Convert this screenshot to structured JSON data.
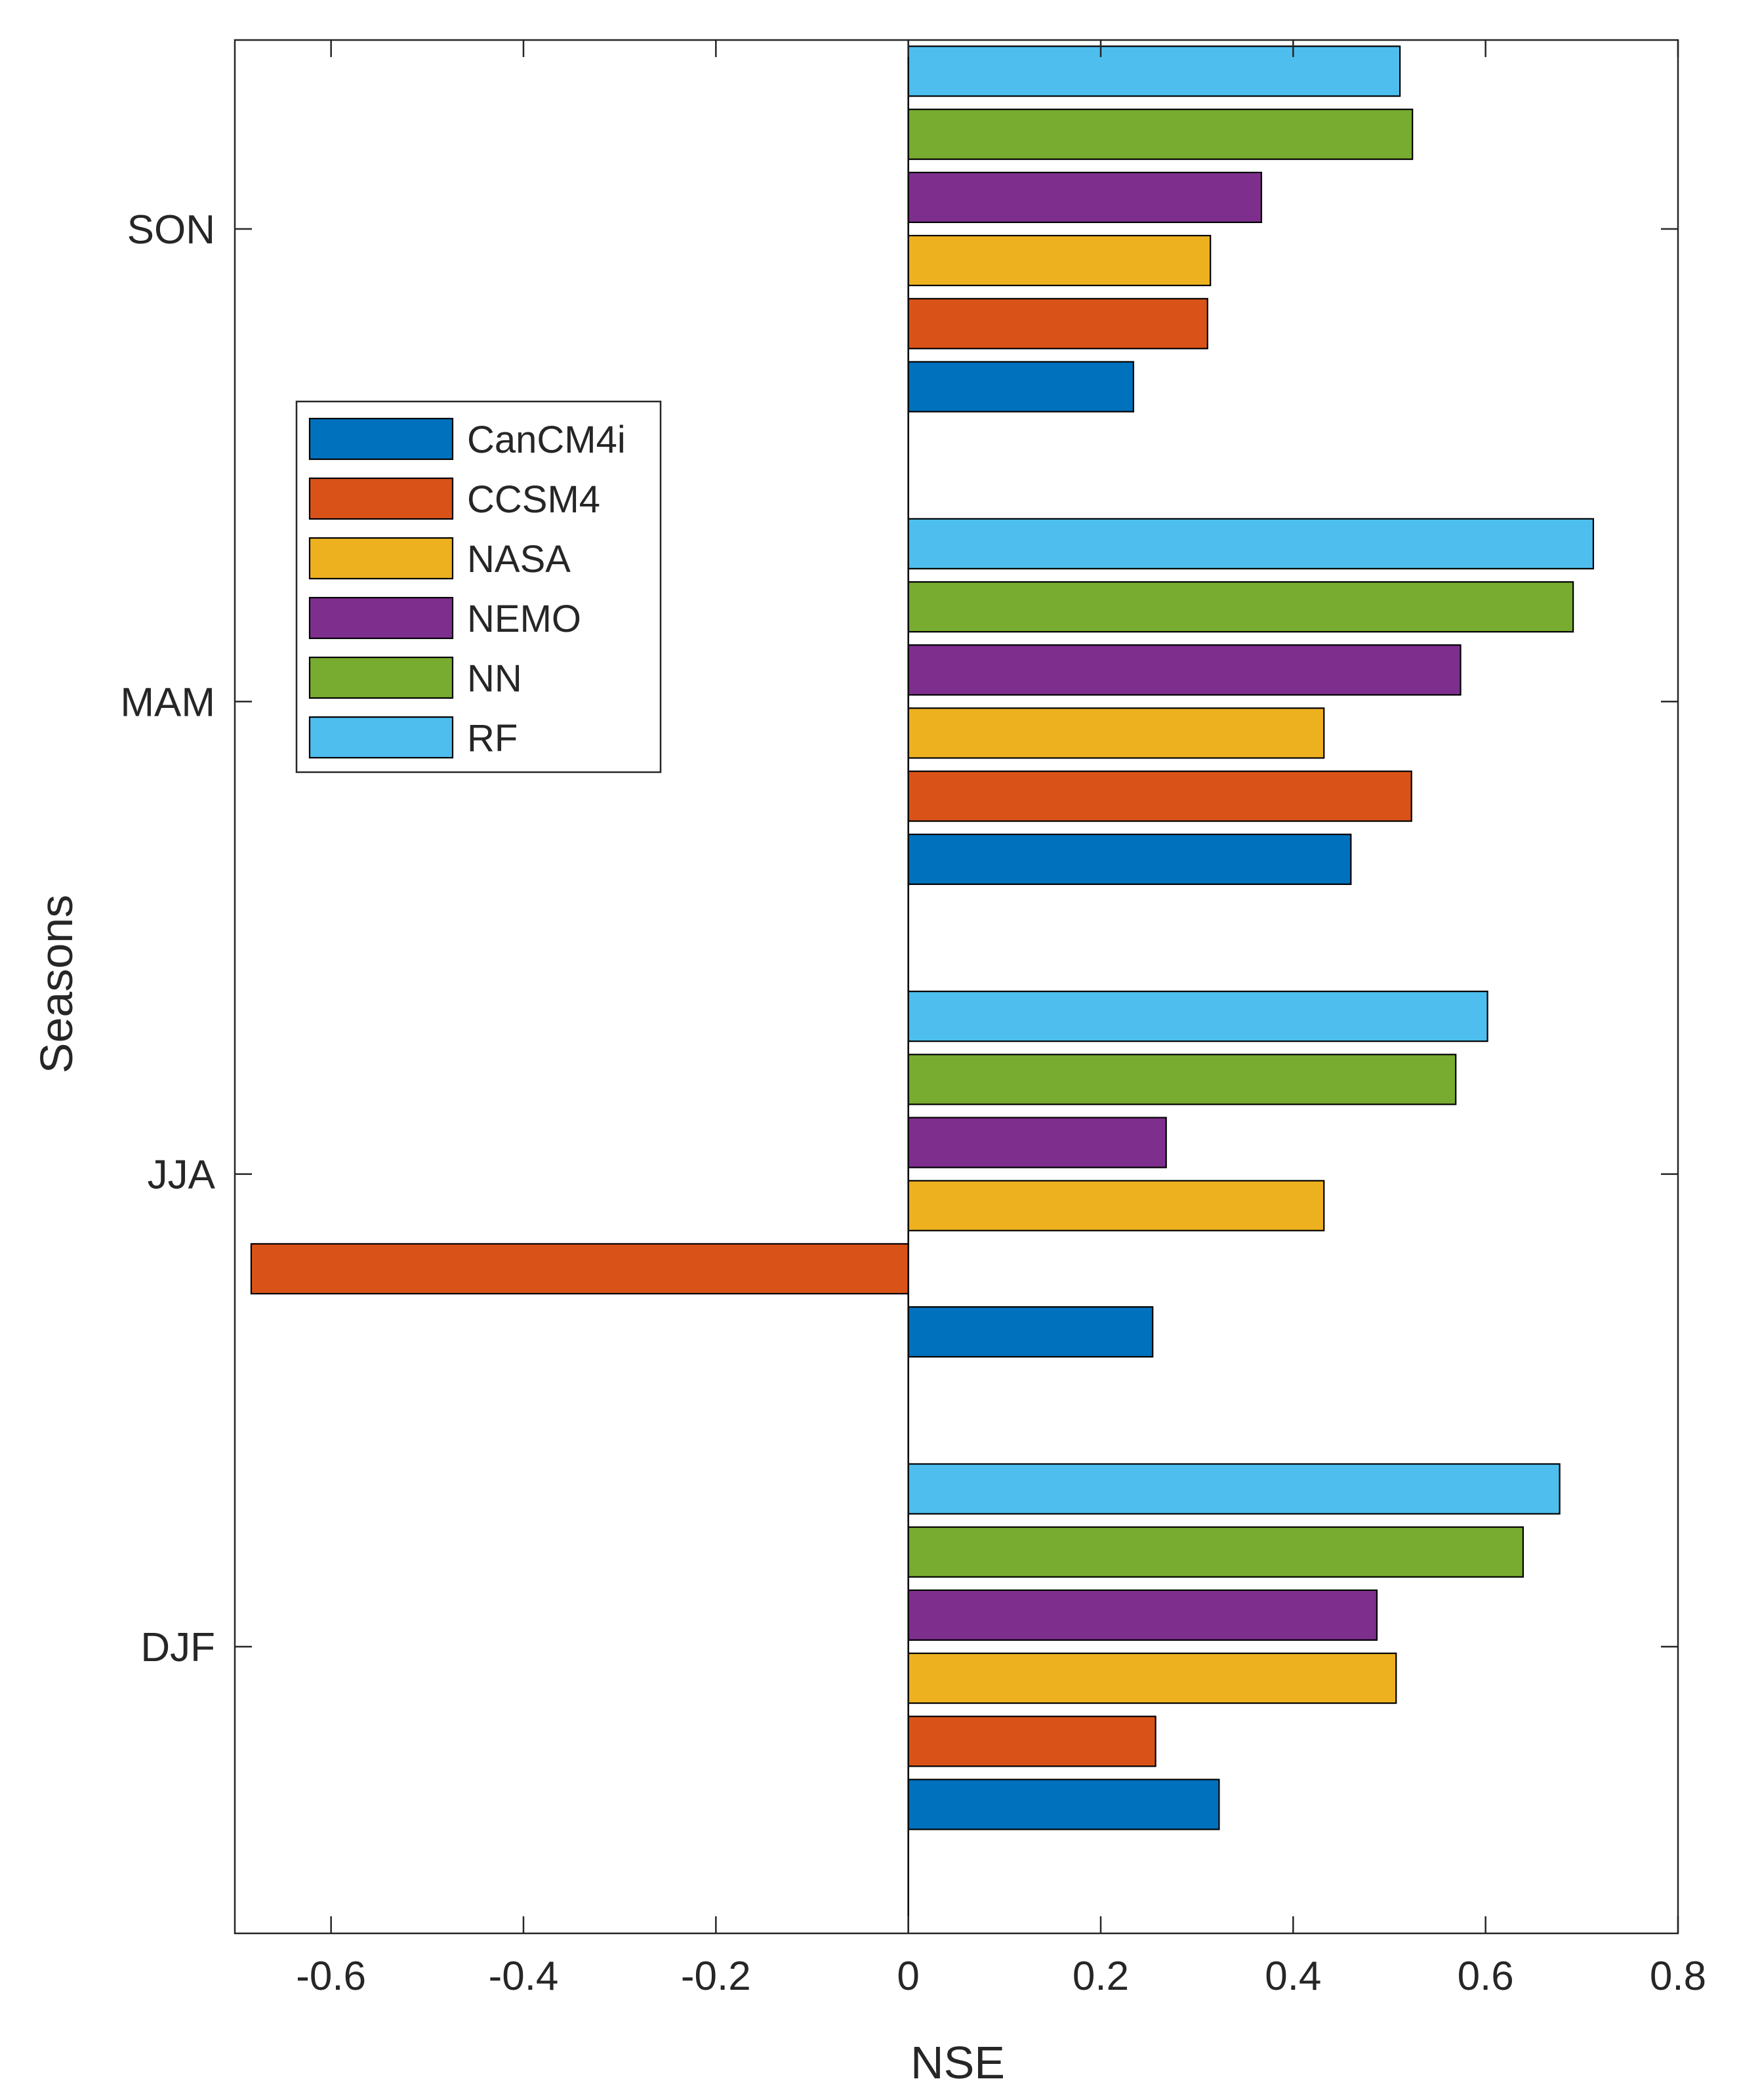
{
  "chart_data": {
    "type": "bar",
    "orientation": "horizontal",
    "title": "",
    "xlabel": "NSE",
    "ylabel": "Seasons",
    "xlim": [
      -0.7,
      0.8
    ],
    "xticks": [
      -0.6,
      -0.4,
      -0.2,
      0,
      0.2,
      0.4,
      0.6,
      0.8
    ],
    "xtick_labels": [
      "-0.6",
      "-0.4",
      "-0.2",
      "0",
      "0.2",
      "0.4",
      "0.6",
      "0.8"
    ],
    "categories": [
      "DJF",
      "JJA",
      "MAM",
      "SON"
    ],
    "grid": false,
    "legend_position": "upper-left",
    "series": [
      {
        "name": "CanCM4i",
        "color": "#0072BD",
        "values": [
          0.323,
          0.254,
          0.46,
          0.234
        ]
      },
      {
        "name": "CCSM4",
        "color": "#D95319",
        "values": [
          0.257,
          -0.683,
          0.523,
          0.311
        ]
      },
      {
        "name": "NASA",
        "color": "#EDB120",
        "values": [
          0.507,
          0.432,
          0.432,
          0.314
        ]
      },
      {
        "name": "NEMO",
        "color": "#7E2F8E",
        "values": [
          0.487,
          0.268,
          0.574,
          0.367
        ]
      },
      {
        "name": "NN",
        "color": "#77AC30",
        "values": [
          0.639,
          0.569,
          0.691,
          0.524
        ]
      },
      {
        "name": "RF",
        "color": "#4DBEEE",
        "values": [
          0.677,
          0.602,
          0.712,
          0.511
        ]
      }
    ]
  }
}
